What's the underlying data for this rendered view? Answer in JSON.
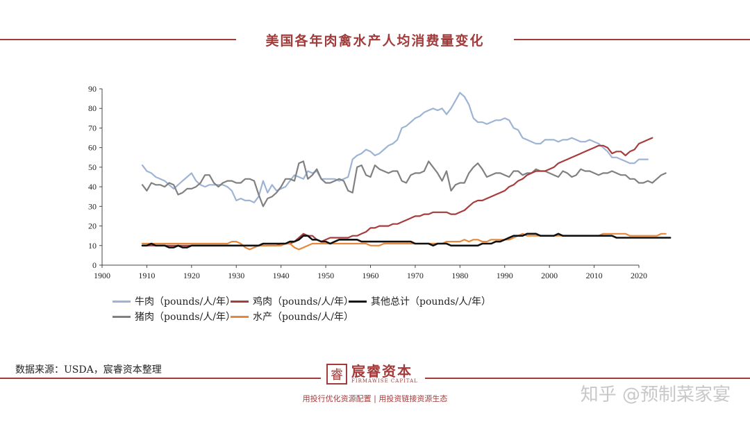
{
  "title": "美国各年肉禽水产人均消费量变化",
  "source": "数据来源：USDA，宸睿资本整理",
  "brand": {
    "name": "宸睿资本",
    "logo_char": "睿",
    "subtitle": "FIRMAWISE CAPITAL",
    "slogan": "用投行优化资源配置 | 用投资链接资源生态"
  },
  "watermark": "知乎 @预制菜家宴",
  "colors": {
    "accent": "#a33a3a"
  },
  "chart_data": {
    "type": "line",
    "xlim": [
      1900,
      2020
    ],
    "ylim": [
      0,
      90
    ],
    "xticks": [
      1900,
      1910,
      1920,
      1930,
      1940,
      1950,
      1960,
      1970,
      1980,
      1990,
      2000,
      2010,
      2020
    ],
    "yticks": [
      0,
      10,
      20,
      30,
      40,
      50,
      60,
      70,
      80,
      90
    ],
    "legend_placement": "bottom-left",
    "grid": false,
    "series": [
      {
        "name": "牛肉（pounds/人/年）",
        "color": "#9db4d4",
        "start": 1909,
        "values": [
          51,
          48,
          47,
          45,
          44,
          43,
          41,
          39,
          41,
          43,
          45,
          47,
          43,
          41,
          40,
          41,
          41,
          41,
          41,
          40,
          38,
          33,
          34,
          33,
          33,
          32,
          35,
          43,
          37,
          41,
          38,
          39,
          40,
          43,
          46,
          45,
          44,
          48,
          47,
          48,
          44,
          44,
          44,
          44,
          43,
          44,
          45,
          54,
          56,
          57,
          59,
          58,
          56,
          57,
          59,
          61,
          62,
          64,
          70,
          71,
          73,
          75,
          76,
          78,
          79,
          80,
          79,
          80,
          77,
          80,
          84,
          88,
          86,
          82,
          75,
          73,
          73,
          72,
          73,
          74,
          74,
          75,
          74,
          70,
          69,
          65,
          64,
          63,
          62,
          62,
          64,
          64,
          64,
          63,
          64,
          64,
          65,
          64,
          63,
          63,
          64,
          63,
          62,
          60,
          58,
          55,
          55,
          54,
          53,
          52,
          52,
          54,
          54,
          54
        ]
      },
      {
        "name": "鸡肉（pounds/人/年）",
        "color": "#a83b3b",
        "start": 1909,
        "values": [
          10,
          10,
          10,
          10,
          10,
          10,
          10,
          10,
          10,
          10,
          10,
          10,
          10,
          10,
          10,
          10,
          10,
          10,
          10,
          10,
          10,
          10,
          10,
          10,
          10,
          10,
          10,
          10,
          10,
          10,
          10,
          11,
          11,
          11,
          12,
          14,
          16,
          15,
          15,
          13,
          12,
          13,
          14,
          14,
          14,
          14,
          14,
          15,
          15,
          16,
          17,
          19,
          19,
          20,
          20,
          20,
          21,
          21,
          22,
          23,
          24,
          25,
          25,
          26,
          26,
          27,
          27,
          27,
          27,
          26,
          26,
          27,
          28,
          30,
          32,
          33,
          33,
          34,
          35,
          36,
          37,
          38,
          40,
          41,
          43,
          44,
          46,
          47,
          48,
          48,
          48,
          49,
          50,
          52,
          53,
          54,
          55,
          56,
          57,
          58,
          59,
          60,
          61,
          61,
          60,
          57,
          58,
          58,
          56,
          58,
          59,
          62,
          63,
          64,
          65
        ]
      },
      {
        "name": "猪肉（pounds/人/年）",
        "color": "#808080",
        "start": 1909,
        "values": [
          41,
          38,
          42,
          41,
          41,
          40,
          42,
          41,
          36,
          37,
          39,
          39,
          40,
          42,
          46,
          46,
          42,
          40,
          42,
          43,
          43,
          42,
          42,
          44,
          44,
          43,
          36,
          30,
          34,
          35,
          37,
          40,
          44,
          44,
          43,
          52,
          53,
          44,
          46,
          49,
          44,
          42,
          42,
          43,
          44,
          43,
          38,
          37,
          50,
          51,
          46,
          45,
          51,
          49,
          48,
          47,
          48,
          48,
          43,
          42,
          46,
          47,
          47,
          48,
          53,
          50,
          47,
          43,
          48,
          38,
          41,
          42,
          42,
          47,
          50,
          52,
          49,
          45,
          46,
          47,
          47,
          46,
          45,
          48,
          48,
          46,
          47,
          47,
          49,
          48,
          48,
          47,
          46,
          45,
          48,
          47,
          45,
          46,
          49,
          48,
          48,
          47,
          46,
          47,
          47,
          48,
          47,
          46,
          46,
          44,
          44,
          42,
          42,
          43,
          42,
          44,
          46,
          47
        ]
      },
      {
        "name": "水产（pounds/人/年）",
        "color": "#e8873a",
        "start": 1909,
        "values": [
          11,
          11,
          11,
          11,
          11,
          11,
          11,
          11,
          11,
          11,
          11,
          11,
          11,
          11,
          11,
          11,
          11,
          11,
          11,
          11,
          12,
          12,
          11,
          9,
          8,
          9,
          10,
          10,
          10,
          10,
          10,
          10,
          11,
          11,
          9,
          8,
          9,
          10,
          11,
          11,
          11,
          11,
          11,
          11,
          11,
          11,
          11,
          11,
          11,
          11,
          11,
          10,
          10,
          10,
          11,
          11,
          11,
          11,
          11,
          11,
          11,
          11,
          11,
          11,
          11,
          11,
          11,
          11,
          12,
          12,
          12,
          12,
          13,
          12,
          13,
          13,
          12,
          12,
          13,
          13,
          13,
          13,
          13,
          14,
          15,
          16,
          15,
          15,
          15,
          15,
          15,
          15,
          15,
          15,
          15,
          15,
          15,
          15,
          15,
          15,
          15,
          15,
          15,
          16,
          16,
          16,
          16,
          16,
          16,
          15,
          15,
          15,
          15,
          15,
          15,
          15,
          16,
          16
        ]
      },
      {
        "name": "其他总计（pounds/人/年）",
        "color": "#111111",
        "start": 1909,
        "values": [
          10,
          10,
          11,
          10,
          10,
          10,
          9,
          9,
          10,
          9,
          9,
          10,
          10,
          10,
          10,
          10,
          10,
          10,
          10,
          10,
          10,
          10,
          10,
          10,
          10,
          10,
          10,
          11,
          11,
          11,
          11,
          11,
          11,
          12,
          12,
          13,
          15,
          15,
          13,
          13,
          12,
          12,
          11,
          12,
          13,
          13,
          13,
          13,
          13,
          12,
          12,
          12,
          12,
          12,
          12,
          12,
          12,
          12,
          12,
          12,
          12,
          11,
          11,
          11,
          11,
          10,
          11,
          11,
          11,
          10,
          10,
          10,
          10,
          10,
          10,
          10,
          11,
          11,
          11,
          12,
          12,
          13,
          14,
          15,
          15,
          15,
          16,
          16,
          16,
          15,
          15,
          15,
          15,
          16,
          15,
          15,
          15,
          15,
          15,
          15,
          15,
          15,
          15,
          15,
          15,
          15,
          14,
          14,
          14,
          14,
          14,
          14,
          14,
          14,
          14,
          14,
          14,
          14,
          14
        ]
      }
    ]
  }
}
